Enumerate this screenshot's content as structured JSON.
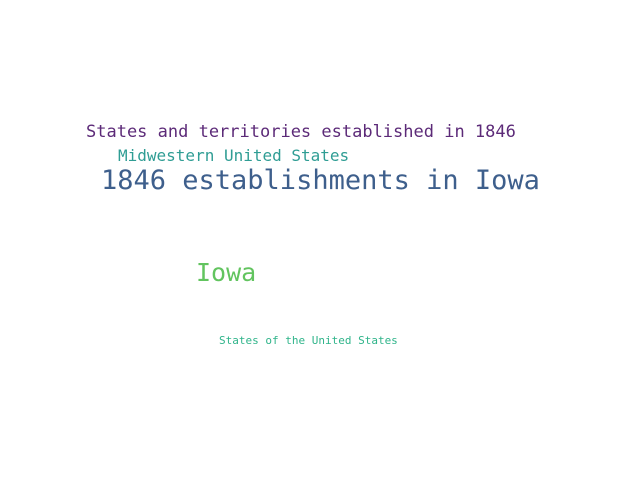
{
  "words": [
    {
      "text": "States and territories established in 1846",
      "color": "#5c2a78"
    },
    {
      "text": "Midwestern United States",
      "color": "#2f9d94"
    },
    {
      "text": "1846 establishments in Iowa",
      "color": "#3e5f8c"
    },
    {
      "text": "Iowa",
      "color": "#62c45f"
    },
    {
      "text": "States of the United States",
      "color": "#2fb48a"
    }
  ]
}
